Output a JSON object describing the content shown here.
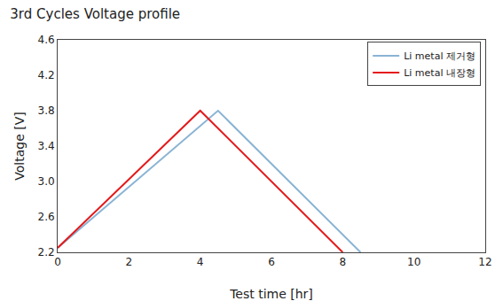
{
  "chart_data": {
    "type": "line",
    "title": "3rd Cycles Voltage profile",
    "x_label": "Test time [hr]",
    "y_label": "Voltage [V]",
    "series": [
      {
        "name": "Li metal 제거형",
        "color": "#8ab4d4",
        "x": [
          0,
          4.5,
          8.5
        ],
        "values": [
          2.25,
          3.8,
          2.2
        ]
      },
      {
        "name": "Li metal 내장형",
        "color": "#e31a1c",
        "x": [
          0,
          4.0,
          8.0
        ],
        "values": [
          2.25,
          3.8,
          2.2
        ]
      }
    ],
    "xlim": [
      0,
      12
    ],
    "ylim": [
      2.2,
      4.6
    ],
    "xticks": [
      0,
      2,
      4,
      6,
      8,
      10,
      12
    ],
    "yticks": [
      2.2,
      2.6,
      {
        "value": 3.0,
        "label": "3.0"
      },
      3.4,
      3.8,
      4.2,
      4.6
    ],
    "grid": false,
    "legend": "upper right"
  }
}
